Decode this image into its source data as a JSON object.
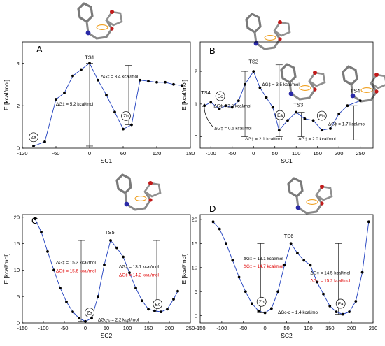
{
  "chart_data": [
    {
      "panel": "A",
      "type": "line",
      "xlabel": "SC1",
      "ylabel": "E [kcal/mol]",
      "xlim": [
        -120,
        180
      ],
      "ylim": [
        0,
        5
      ],
      "xticks": [
        "-120",
        "-60",
        "0",
        "60",
        "120",
        "180"
      ],
      "yticks": [
        "0",
        "2",
        "4"
      ],
      "grid": false,
      "legend": "none",
      "x": [
        -100,
        -80,
        -60,
        -45,
        -30,
        -15,
        0,
        15,
        30,
        45,
        60,
        75,
        90,
        105,
        120,
        135,
        150,
        165
      ],
      "y": [
        0.1,
        0.3,
        2.3,
        2.6,
        3.4,
        3.7,
        4.0,
        3.2,
        2.5,
        1.7,
        0.9,
        1.1,
        3.2,
        3.15,
        3.1,
        3.1,
        3.0,
        2.95
      ],
      "labels": [
        {
          "text": "TS1",
          "kind": "ts",
          "x": 0,
          "y": 4.2
        },
        {
          "text": "Za",
          "kind": "state",
          "x": -100,
          "y": 0.45
        },
        {
          "text": "Zb",
          "kind": "state",
          "x": 65,
          "y": 1.45
        },
        {
          "text": "ΔG‡ = 3.4 kcal/mol",
          "kind": "anno",
          "x": 20,
          "y": 3.3
        },
        {
          "text": "ΔG‡ = 5.2 kcal/mol",
          "kind": "anno",
          "x": -60,
          "y": 2.0
        }
      ],
      "bars": [
        {
          "x": 0,
          "y1": 0.1,
          "y2": 4.0
        },
        {
          "x": 70,
          "y1": 1.1,
          "y2": 3.9
        }
      ]
    },
    {
      "panel": "B",
      "type": "line",
      "xlabel": "SC1",
      "ylabel": "E [kcal/mol]",
      "xlim": [
        -125,
        280
      ],
      "ylim": [
        -0.35,
        2.9
      ],
      "xticks": [
        "-100",
        "-50",
        "0",
        "50",
        "100",
        "150",
        "200",
        "250"
      ],
      "yticks": [
        "0",
        "1",
        "2"
      ],
      "grid": false,
      "legend": "none",
      "x": [
        -115,
        -100,
        -80,
        -65,
        -50,
        -35,
        -20,
        0,
        15,
        30,
        45,
        60,
        80,
        100,
        120,
        140,
        160,
        180,
        200,
        220,
        250
      ],
      "y": [
        0.95,
        1.05,
        0.85,
        0.95,
        0.9,
        1.1,
        1.6,
        2.0,
        1.5,
        1.2,
        0.9,
        0.2,
        0.5,
        0.75,
        0.55,
        0.5,
        0.2,
        0.25,
        0.7,
        0.95,
        1.1
      ],
      "labels": [
        {
          "text": "TS4",
          "kind": "ts",
          "x": -112,
          "y": 1.3
        },
        {
          "text": "Ec",
          "kind": "state",
          "x": -78,
          "y": 1.2
        },
        {
          "text": "TS2",
          "kind": "ts",
          "x": 0,
          "y": 2.25
        },
        {
          "text": "ΔG‡ = 2.8 kcal/mol",
          "kind": "anno",
          "x": -93,
          "y": 0.9
        },
        {
          "text": "ΔG‡ = 3.5 kcal/mol",
          "kind": "anno",
          "x": 20,
          "y": 1.55
        },
        {
          "text": "ΔG‡ = 0.6 kcal/mol",
          "kind": "anno",
          "x": -92,
          "y": 0.22
        },
        {
          "text": "ΔG‡ = 2.1 kcal/mol",
          "kind": "anno",
          "x": -20,
          "y": -0.12
        },
        {
          "text": "Ea",
          "kind": "state",
          "x": 62,
          "y": 0.62
        },
        {
          "text": "TS3",
          "kind": "ts",
          "x": 105,
          "y": 0.92
        },
        {
          "text": "Eb",
          "kind": "state",
          "x": 160,
          "y": 0.6
        },
        {
          "text": "ΔG‡ = 2.0 kcal/mol",
          "kind": "anno",
          "x": 105,
          "y": -0.12
        },
        {
          "text": "ΔG‡ = 1.7 kcal/mol",
          "kind": "anno",
          "x": 175,
          "y": 0.35
        },
        {
          "text": "TS4",
          "kind": "ts",
          "x": 238,
          "y": 1.35
        }
      ],
      "bars": [
        {
          "x": -20,
          "y1": 0.0,
          "y2": 2.0
        },
        {
          "x": 60,
          "y1": 0.0,
          "y2": 2.2
        },
        {
          "x": 112,
          "y1": 0.0,
          "y2": 0.75
        },
        {
          "x": 235,
          "y1": -0.1,
          "y2": 0.95
        }
      ],
      "arrow": {
        "from": [
          -95,
          0.3
        ],
        "to": [
          -115,
          1.0
        ]
      }
    },
    {
      "panel": "C",
      "type": "line",
      "xlabel": "SC2",
      "ylabel": "E [kcal/mol]",
      "xlim": [
        -150,
        250
      ],
      "ylim": [
        0,
        20.5
      ],
      "xticks": [
        "-150",
        "-100",
        "-50",
        "0",
        "50",
        "100",
        "150",
        "200",
        "250"
      ],
      "yticks": [
        "0",
        "5",
        "10",
        "15",
        "20"
      ],
      "grid": false,
      "legend": "none",
      "x": [
        -120,
        -105,
        -90,
        -75,
        -60,
        -45,
        -30,
        -15,
        0,
        15,
        30,
        45,
        60,
        75,
        90,
        105,
        120,
        135,
        150,
        165,
        180,
        195,
        210,
        220
      ],
      "y": [
        19.7,
        17.2,
        13.5,
        10.0,
        6.6,
        4.0,
        2.1,
        0.9,
        0.3,
        0.9,
        5.0,
        11.0,
        15.6,
        14.2,
        12.5,
        9.5,
        6.6,
        4.2,
        2.6,
        2.3,
        2.1,
        2.6,
        4.5,
        6.0
      ],
      "labels": [
        {
          "text": "TS5",
          "kind": "ts",
          "x": 58,
          "y": 16.8
        },
        {
          "text": "ΔG‡ = 15.3 kcal/mol",
          "kind": "anno",
          "x": -70,
          "y": 11.2
        },
        {
          "text": "ΔG‡ = 15.6 kcal/mol",
          "kind": "anno-red",
          "x": -70,
          "y": 9.6
        },
        {
          "text": "ΔG‡ = 13.1 kcal/mol",
          "kind": "anno",
          "x": 80,
          "y": 10.4
        },
        {
          "text": "ΔG‡ = 14.2 kcal/mol",
          "kind": "anno-red",
          "x": 80,
          "y": 8.8
        },
        {
          "text": "Za",
          "kind": "state",
          "x": 10,
          "y": 1.7
        },
        {
          "text": "Ec",
          "kind": "state",
          "x": 172,
          "y": 3.3
        },
        {
          "text": "ΔGc-c = 2.2 kcal/mol",
          "kind": "anno",
          "x": 30,
          "y": 0.3
        }
      ],
      "bars": [
        {
          "x": -10,
          "y1": 0.3,
          "y2": 15.6
        },
        {
          "x": 170,
          "y1": 2.1,
          "y2": 15.6
        }
      ]
    },
    {
      "panel": "D",
      "type": "line",
      "xlabel": "SC2",
      "ylabel": "E [kcal/mol]",
      "xlim": [
        -150,
        250
      ],
      "ylim": [
        -1.5,
        21
      ],
      "xticks": [
        "-150",
        "-100",
        "-50",
        "0",
        "50",
        "100",
        "150",
        "200",
        "250"
      ],
      "yticks": [
        "0",
        "5",
        "10",
        "15",
        "20"
      ],
      "grid": false,
      "legend": "none",
      "x": [
        -120,
        -105,
        -90,
        -75,
        -60,
        -45,
        -30,
        -15,
        0,
        15,
        30,
        45,
        60,
        75,
        90,
        105,
        120,
        135,
        150,
        165,
        180,
        195,
        210,
        225,
        240
      ],
      "y": [
        19.5,
        18.0,
        15.0,
        11.5,
        8.0,
        5.0,
        2.5,
        1.0,
        0.6,
        1.5,
        5.0,
        10.5,
        15.0,
        13.0,
        11.5,
        10.5,
        7.0,
        4.5,
        2.0,
        0.8,
        0.3,
        0.8,
        3.0,
        9.0,
        19.5
      ],
      "labels": [
        {
          "text": "TS6",
          "kind": "ts",
          "x": 55,
          "y": 16.2
        },
        {
          "text": "ΔG‡ = 13.1 kcal/mol",
          "kind": "anno",
          "x": -50,
          "y": 11.6
        },
        {
          "text": "ΔG‡ = 14.7 kcal/mol",
          "kind": "anno-red",
          "x": -50,
          "y": 10.0
        },
        {
          "text": "ΔG‡ = 14.5 kcal/mol",
          "kind": "anno",
          "x": 105,
          "y": 8.6
        },
        {
          "text": "ΔG‡ = 15.2 kcal/mol",
          "kind": "anno-red",
          "x": 105,
          "y": 7.0
        },
        {
          "text": "Zb",
          "kind": "state",
          "x": -8,
          "y": 2.6
        },
        {
          "text": "Ea",
          "kind": "state",
          "x": 175,
          "y": 2.2
        },
        {
          "text": "ΔGc-c = 1.4 kcal/mol",
          "kind": "anno",
          "x": 30,
          "y": 0.4
        }
      ],
      "bars": [
        {
          "x": -10,
          "y1": 0.6,
          "y2": 15.0
        },
        {
          "x": 170,
          "y1": 0.3,
          "y2": 15.0
        }
      ]
    }
  ],
  "colors": {
    "curve": "#1f3fbf",
    "marker": "#000000",
    "red_annotation": "#e00000"
  }
}
